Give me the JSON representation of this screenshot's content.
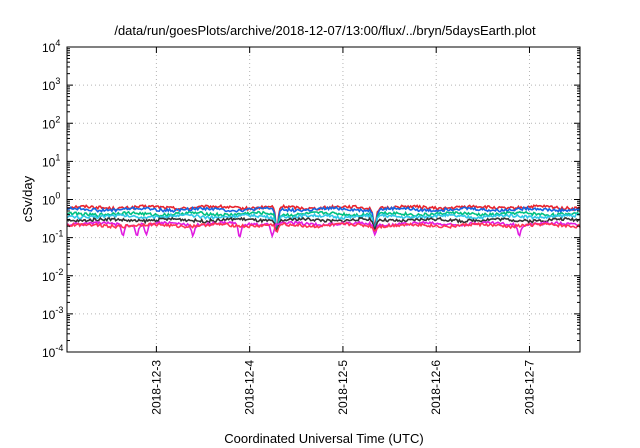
{
  "chart_data": {
    "type": "line",
    "title": "/data/run/goesPlots/archive/2018-12-07/13:00/flux/../bryn/5daysEarth.plot",
    "xlabel": "Coordinated Universal Time (UTC)",
    "ylabel": "cSv/day",
    "yscale": "log",
    "ylim_exponents": [
      -4,
      4
    ],
    "y_tick_labels": [
      {
        "base": "10",
        "exp": "4"
      },
      {
        "base": "10",
        "exp": "3"
      },
      {
        "base": "10",
        "exp": "2"
      },
      {
        "base": "10",
        "exp": "1"
      },
      {
        "base": "10",
        "exp": "0"
      },
      {
        "base": "10",
        "exp": "-1"
      },
      {
        "base": "10",
        "exp": "-2"
      },
      {
        "base": "10",
        "exp": "-3"
      },
      {
        "base": "10",
        "exp": "-4"
      }
    ],
    "xlim": [
      "2018-12-02 01:00",
      "2018-12-07 13:00"
    ],
    "x_tick_labels": [
      "2018-12-3",
      "2018-12-4",
      "2018-12-5",
      "2018-12-6",
      "2018-12-7"
    ],
    "grid": true,
    "series": [
      {
        "color": "#e8242d",
        "baseline": 0.62,
        "dips": [
          {
            "t": 2.25,
            "v": 0.16
          },
          {
            "t": 3.3,
            "v": 0.18
          }
        ]
      },
      {
        "color": "#1565e0",
        "baseline": 0.55,
        "dips": [
          {
            "t": 2.25,
            "v": 0.14
          },
          {
            "t": 3.3,
            "v": 0.16
          }
        ]
      },
      {
        "color": "#00c080",
        "baseline": 0.42,
        "dips": [
          {
            "t": 2.25,
            "v": 0.15
          },
          {
            "t": 3.3,
            "v": 0.16
          }
        ]
      },
      {
        "color": "#30c8e8",
        "baseline": 0.36,
        "dips": [
          {
            "t": 2.25,
            "v": 0.14
          },
          {
            "t": 3.3,
            "v": 0.15
          }
        ]
      },
      {
        "color": "#333333",
        "baseline": 0.29,
        "dips": [
          {
            "t": 2.25,
            "v": 0.15
          },
          {
            "t": 3.3,
            "v": 0.16
          }
        ]
      },
      {
        "color": "#e01ce0",
        "baseline": 0.23,
        "dips": [
          {
            "t": 0.6,
            "v": 0.11
          },
          {
            "t": 0.75,
            "v": 0.11
          },
          {
            "t": 0.85,
            "v": 0.12
          },
          {
            "t": 1.35,
            "v": 0.11
          },
          {
            "t": 1.85,
            "v": 0.1
          },
          {
            "t": 2.2,
            "v": 0.11
          },
          {
            "t": 3.3,
            "v": 0.12
          },
          {
            "t": 4.85,
            "v": 0.11
          }
        ]
      },
      {
        "color": "#ff3355",
        "baseline": 0.21,
        "dips": [
          {
            "t": 2.25,
            "v": 0.14
          },
          {
            "t": 3.3,
            "v": 0.15
          }
        ]
      }
    ]
  }
}
